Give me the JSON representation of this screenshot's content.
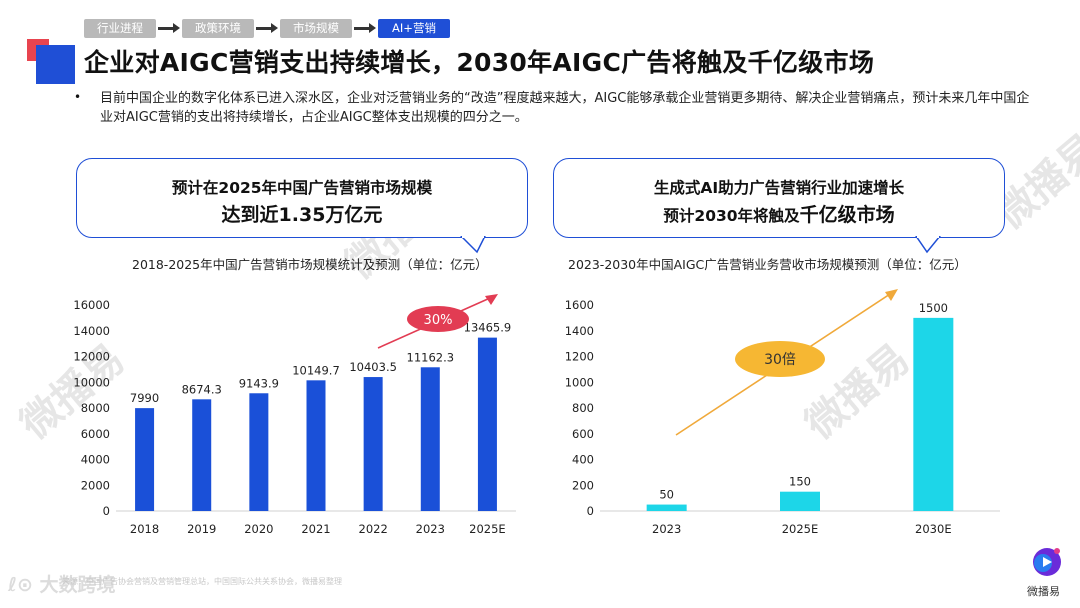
{
  "breadcrumb": [
    "行业进程",
    "政策环境",
    "市场规模",
    "AI+营销"
  ],
  "title": "企业对AIGC营销支出持续增长，2030年AIGC广告将触及千亿级市场",
  "bullet_text": "目前中国企业的数字化体系已进入深水区，企业对泛营销业务的“改造”程度越来越大，AIGC能够承载企业营销更多期待、解决企业营销痛点，预计未来几年中国企业对AIGC营销的支出将持续增长，占企业AIGC整体支出规模的四分之一。",
  "callout_left": {
    "line1": "预计在2025年中国广告营销市场规模",
    "line2": "达到近1.35万亿元"
  },
  "callout_right": {
    "line1": "生成式AI助力广告营销行业加速增长",
    "line2a": "预计2030年将触及",
    "line2b": "千亿级市场"
  },
  "watermark": "微播易",
  "footer": {
    "logo_text": "大数跨境",
    "source": "来源：中国广告协会营销及营销管理总站，中国国际公共关系协会，微播易整理"
  },
  "brand_name": "微播易",
  "colors": {
    "left_bars": "#1a50d8",
    "right_bars": "#1dd6e8",
    "accent_blue": "#1f4fd6",
    "badge_red": "#e23c53",
    "badge_orange": "#f6b733"
  },
  "chart_data": [
    {
      "type": "bar",
      "title": "2018-2025年中国广告营销市场规模统计及预测（单位：亿元）",
      "categories": [
        "2018",
        "2019",
        "2020",
        "2021",
        "2022",
        "2023",
        "2025E"
      ],
      "values": [
        7990,
        8674.3,
        9143.9,
        10149.7,
        10403.5,
        11162.3,
        13465.9
      ],
      "value_labels": [
        "7990",
        "8674.3",
        "9143.9",
        "10149.7",
        "10403.5",
        "11162.3",
        "13465.9"
      ],
      "ylim": [
        0,
        16000
      ],
      "yticks": [
        0,
        2000,
        4000,
        6000,
        8000,
        10000,
        12000,
        14000,
        16000
      ],
      "annotation": "30%",
      "grid": false
    },
    {
      "type": "bar",
      "title": "2023-2030年中国AIGC广告营销业务营收市场规模预测（单位：亿元）",
      "categories": [
        "2023",
        "2025E",
        "2030E"
      ],
      "values": [
        50,
        150,
        1500
      ],
      "value_labels": [
        "50",
        "150",
        "1500"
      ],
      "ylim": [
        0,
        1600
      ],
      "yticks": [
        0,
        200,
        400,
        600,
        800,
        1000,
        1200,
        1400,
        1600
      ],
      "annotation": "30倍",
      "grid": false
    }
  ]
}
